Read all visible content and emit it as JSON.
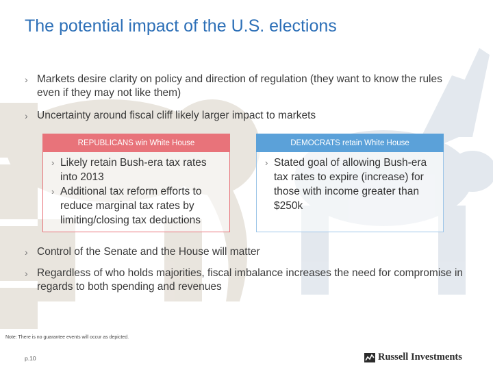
{
  "slide": {
    "title": "The potential impact of the U.S. elections",
    "bullets_top": [
      "Markets desire clarity on policy and direction of regulation (they want to know the rules even if they may not like them)",
      "Uncertainty around fiscal cliff likely larger impact to markets"
    ],
    "republicans": {
      "header": "REPUBLICANS win White House",
      "items": [
        "Likely retain Bush-era tax rates into 2013",
        "Additional tax reform efforts to reduce marginal tax rates by limiting/closing tax deductions"
      ]
    },
    "democrats": {
      "header": "DEMOCRATS retain White House",
      "items": [
        "Stated goal of allowing Bush-era tax rates to expire (increase) for those with income greater than $250k"
      ]
    },
    "bullets_bottom": [
      "Control of the Senate and the House will matter",
      "Regardless of who holds majorities, fiscal imbalance increases the need for compromise in regards to both spending and revenues"
    ]
  },
  "footer": {
    "note": "Note: There is no guarantee events will occur as depicted.",
    "page": "p.10",
    "logo_text": "Russell Investments"
  },
  "colors": {
    "title": "#2c6fb7",
    "republican": "#e8737a",
    "democrat": "#5ba1d9"
  }
}
